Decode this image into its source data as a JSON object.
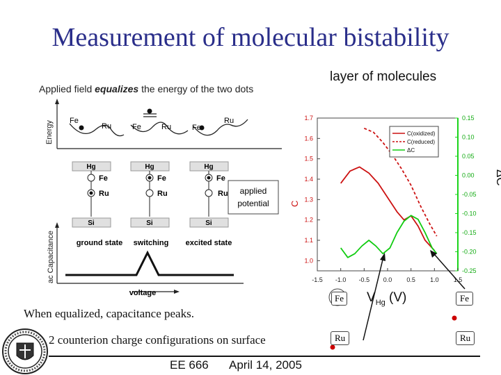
{
  "slide": {
    "title": "Measurement of molecular bistability",
    "layer_label": "layer of molecules",
    "caption_prefix": "Applied field ",
    "caption_em": "equalizes",
    "caption_suffix": " the energy of the two dots",
    "bullet1": "When equalized, capacitance peaks.",
    "bullet2": "2 counterion charge configurations on surface",
    "footer_course": "EE 666",
    "footer_date": "April 14, 2005"
  },
  "schematic": {
    "energy_axis": "Energy",
    "capacitance_axis": "ac Capacitance",
    "voltage_axis": "voltage",
    "states": [
      "ground state",
      "switching",
      "excited state"
    ],
    "fe": "Fe",
    "ru": "Ru",
    "hg": "Hg",
    "si": "Si",
    "applied_potential": [
      "applied",
      "potential"
    ]
  },
  "chart_data": {
    "type": "line",
    "x_label": "V",
    "x_label_sub": "Hg",
    "x_label_unit": "(V)",
    "y_left_label": "C",
    "y_right_label": "ΔC",
    "xlim": [
      -1.5,
      1.5
    ],
    "ylim_left": [
      0.95,
      1.7
    ],
    "ylim_right": [
      -0.25,
      0.15
    ],
    "x_ticks": [
      "-1.5",
      "-1.0",
      "-0.5",
      "0.0",
      "0.5",
      "1.0",
      "1.5"
    ],
    "y_left_ticks": [
      "1.0",
      "1.1",
      "1.2",
      "1.3",
      "1.4",
      "1.5",
      "1.6",
      "1.7"
    ],
    "y_right_ticks": [
      "-0.25",
      "-0.20",
      "-0.15",
      "-0.10",
      "-0.05",
      "0.00",
      "0.05",
      "0.10",
      "0.15"
    ],
    "legend": [
      "C(oxidized)",
      "C(reduced)",
      "ΔC"
    ],
    "series": [
      {
        "name": "C(oxidized)",
        "axis": "left",
        "color": "#cc1111",
        "style": "solid",
        "x": [
          -1.0,
          -0.8,
          -0.6,
          -0.4,
          -0.2,
          0.0,
          0.2,
          0.35,
          0.5,
          0.65,
          0.8,
          1.0
        ],
        "y": [
          1.38,
          1.44,
          1.46,
          1.43,
          1.38,
          1.31,
          1.24,
          1.2,
          1.22,
          1.17,
          1.1,
          1.05
        ]
      },
      {
        "name": "C(reduced)",
        "axis": "left",
        "color": "#cc1111",
        "style": "dashed",
        "x": [
          -0.5,
          -0.3,
          -0.1,
          0.1,
          0.3,
          0.5,
          0.7,
          0.9,
          1.05
        ],
        "y": [
          1.65,
          1.63,
          1.58,
          1.52,
          1.45,
          1.37,
          1.27,
          1.18,
          1.12
        ]
      },
      {
        "name": "ΔC",
        "axis": "right",
        "color": "#11cc11",
        "style": "solid",
        "x": [
          -1.0,
          -0.85,
          -0.7,
          -0.55,
          -0.4,
          -0.25,
          -0.1,
          0.05,
          0.2,
          0.35,
          0.5,
          0.65,
          0.8,
          0.95,
          1.05
        ],
        "y": [
          -0.19,
          -0.215,
          -0.205,
          -0.185,
          -0.17,
          -0.185,
          -0.205,
          -0.19,
          -0.15,
          -0.12,
          -0.105,
          -0.115,
          -0.15,
          -0.19,
          -0.205
        ]
      }
    ],
    "annotations": {
      "fe": "Fe",
      "ru": "Ru"
    }
  }
}
